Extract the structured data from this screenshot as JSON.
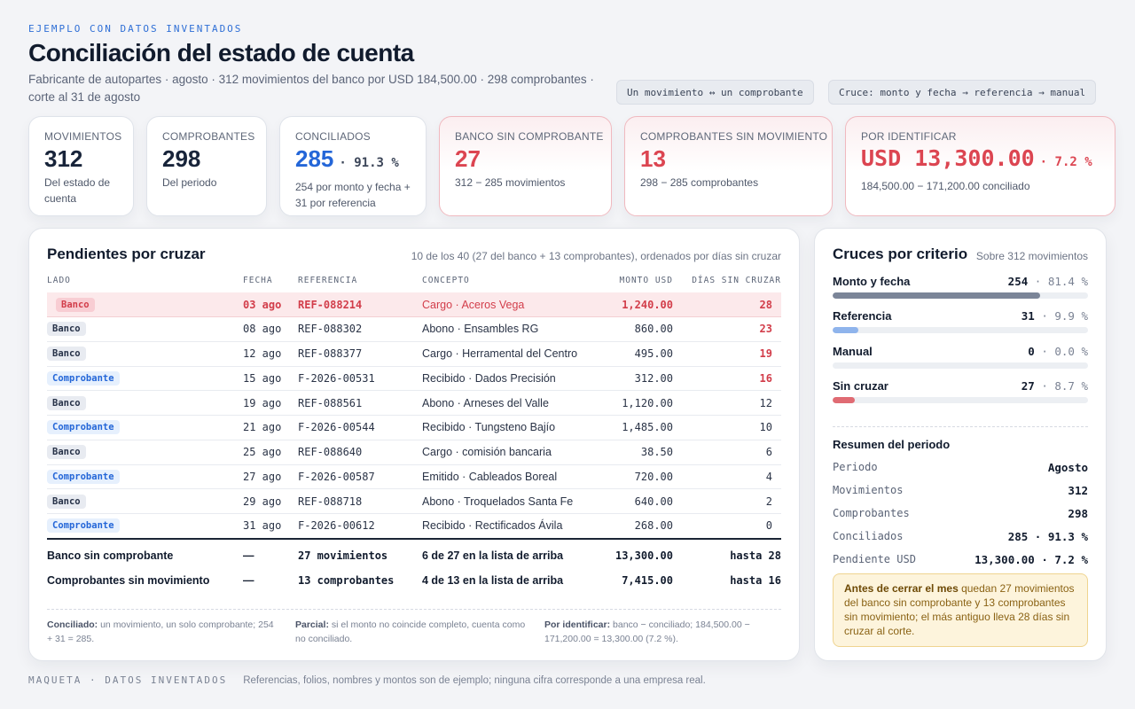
{
  "header": {
    "eyebrow": "EJEMPLO CON DATOS INVENTADOS",
    "title": "Conciliación del estado de cuenta",
    "subtitle": "Fabricante de autopartes · agosto · 312 movimientos del banco por USD 184,500.00 · 298 comprobantes · corte al 31 de agosto",
    "pills": [
      "Un movimiento ↔ un comprobante",
      "Cruce: monto y fecha → referencia → manual"
    ]
  },
  "kpis": [
    {
      "label": "MOVIMIENTOS",
      "value": "312",
      "pct": "",
      "note": "Del estado de cuenta"
    },
    {
      "label": "COMPROBANTES",
      "value": "298",
      "pct": "",
      "note": "Del periodo"
    },
    {
      "label": "CONCILIADOS",
      "value": "285",
      "pct": "· 91.3 %",
      "note": "254 por monto y fecha + 31 por referencia"
    },
    {
      "label": "BANCO SIN COMPROBANTE",
      "value": "27",
      "pct": "",
      "note": "312 − 285 movimientos"
    },
    {
      "label": "COMPROBANTES SIN MOVIMIENTO",
      "value": "13",
      "pct": "",
      "note": "298 − 285 comprobantes"
    },
    {
      "label": "POR IDENTIFICAR",
      "value": "USD 13,300.00",
      "pct": "· 7.2 %",
      "note": "184,500.00 − 171,200.00 conciliado"
    }
  ],
  "pending": {
    "title": "Pendientes por cruzar",
    "meta": "10 de los 40 (27 del banco + 13 comprobantes), ordenados por días sin cruzar",
    "columns": [
      "LADO",
      "FECHA",
      "REFERENCIA",
      "CONCEPTO",
      "MONTO USD",
      "DÍAS SIN CRUZAR"
    ],
    "rows": [
      {
        "side": "Banco",
        "date": "03 ago",
        "ref": "REF-088214",
        "concept": "Cargo · Aceros Vega",
        "amount": "1,240.00",
        "days": "28"
      },
      {
        "side": "Banco",
        "date": "08 ago",
        "ref": "REF-088302",
        "concept": "Abono · Ensambles RG",
        "amount": "860.00",
        "days": "23"
      },
      {
        "side": "Banco",
        "date": "12 ago",
        "ref": "REF-088377",
        "concept": "Cargo · Herramental del Centro",
        "amount": "495.00",
        "days": "19"
      },
      {
        "side": "Comprobante",
        "date": "15 ago",
        "ref": "F-2026-00531",
        "concept": "Recibido · Dados Precisión",
        "amount": "312.00",
        "days": "16"
      },
      {
        "side": "Banco",
        "date": "19 ago",
        "ref": "REF-088561",
        "concept": "Abono · Arneses del Valle",
        "amount": "1,120.00",
        "days": "12"
      },
      {
        "side": "Comprobante",
        "date": "21 ago",
        "ref": "F-2026-00544",
        "concept": "Recibido · Tungsteno Bajío",
        "amount": "1,485.00",
        "days": "10"
      },
      {
        "side": "Banco",
        "date": "25 ago",
        "ref": "REF-088640",
        "concept": "Cargo · comisión bancaria",
        "amount": "38.50",
        "days": "6"
      },
      {
        "side": "Comprobante",
        "date": "27 ago",
        "ref": "F-2026-00587",
        "concept": "Emitido · Cableados Boreal",
        "amount": "720.00",
        "days": "4"
      },
      {
        "side": "Banco",
        "date": "29 ago",
        "ref": "REF-088718",
        "concept": "Abono · Troquelados Santa Fe",
        "amount": "640.00",
        "days": "2"
      },
      {
        "side": "Comprobante",
        "date": "31 ago",
        "ref": "F-2026-00612",
        "concept": "Recibido · Rectificados Ávila",
        "amount": "268.00",
        "days": "0"
      }
    ],
    "summary": [
      {
        "label": "Banco sin comprobante",
        "dash": "—",
        "count": "27 movimientos",
        "list": "6 de 27 en la lista de arriba",
        "amount": "13,300.00",
        "days": "hasta 28"
      },
      {
        "label": "Comprobantes sin movimiento",
        "dash": "—",
        "count": "13 comprobantes",
        "list": "4 de 13 en la lista de arriba",
        "amount": "7,415.00",
        "days": "hasta 16"
      }
    ],
    "footnotes": [
      {
        "term": "Conciliado:",
        "text": "un movimiento, un solo comprobante; 254 + 31 = 285."
      },
      {
        "term": "Parcial:",
        "text": "si el monto no coincide completo, cuenta como no conciliado."
      },
      {
        "term": "Por identificar:",
        "text": "banco − conciliado; 184,500.00 − 171,200.00 = 13,300.00 (7.2 %)."
      }
    ]
  },
  "criteria": {
    "title": "Cruces por criterio",
    "meta": "Sobre 312 movimientos",
    "items": [
      {
        "name": "Monto y fecha",
        "count": "254",
        "pct": "· 81.4 %",
        "share": 0.814,
        "color": "#7b8598"
      },
      {
        "name": "Referencia",
        "count": "31",
        "pct": "· 9.9 %",
        "share": 0.099,
        "color": "#8fb4ec"
      },
      {
        "name": "Manual",
        "count": "0",
        "pct": "· 0.0 %",
        "share": 0.0,
        "color": "#7b8598"
      },
      {
        "name": "Sin cruzar",
        "count": "27",
        "pct": "· 8.7 %",
        "share": 0.087,
        "color": "#e06b73"
      }
    ]
  },
  "period": {
    "title": "Resumen del periodo",
    "rows": [
      {
        "k": "Periodo",
        "v": "Agosto"
      },
      {
        "k": "Movimientos",
        "v": "312"
      },
      {
        "k": "Comprobantes",
        "v": "298"
      },
      {
        "k": "Conciliados",
        "v": "285 · 91.3 %"
      },
      {
        "k": "Pendiente USD",
        "v": "13,300.00 · 7.2 %"
      }
    ],
    "callout_term": "Antes de cerrar el mes",
    "callout_text": " quedan 27 movimientos del banco sin comprobante y 13 comprobantes sin movimiento; el más antiguo lleva 28 días sin cruzar al corte."
  },
  "footer": {
    "tag": "MAQUETA · DATOS INVENTADOS",
    "text": "Referencias, folios, nombres y montos son de ejemplo; ninguna cifra corresponde a una empresa real."
  }
}
